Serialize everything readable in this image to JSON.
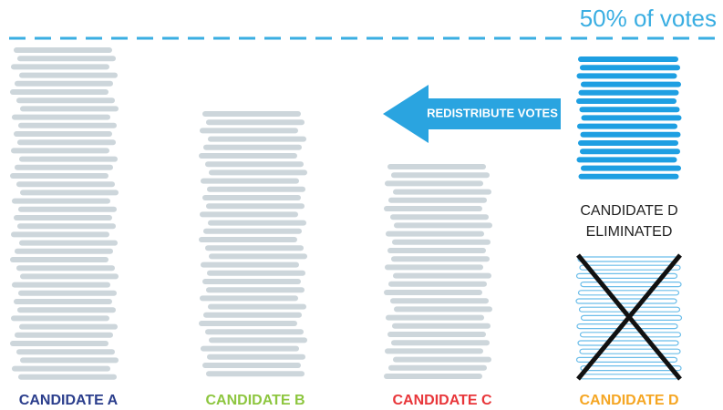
{
  "threshold": {
    "label": "50% of votes"
  },
  "arrow": {
    "label": "REDISTRIBUTE VOTES"
  },
  "eliminated": {
    "lines": [
      "CANDIDATE D",
      "ELIMINATED"
    ]
  },
  "candidates": [
    {
      "label": "CANDIDATE A",
      "color": "#2b3e8c"
    },
    {
      "label": "CANDIDATE B",
      "color": "#8dc63f"
    },
    {
      "label": "CANDIDATE C",
      "color": "#e8363a"
    },
    {
      "label": "CANDIDATE D",
      "color": "#f5a623"
    }
  ]
}
